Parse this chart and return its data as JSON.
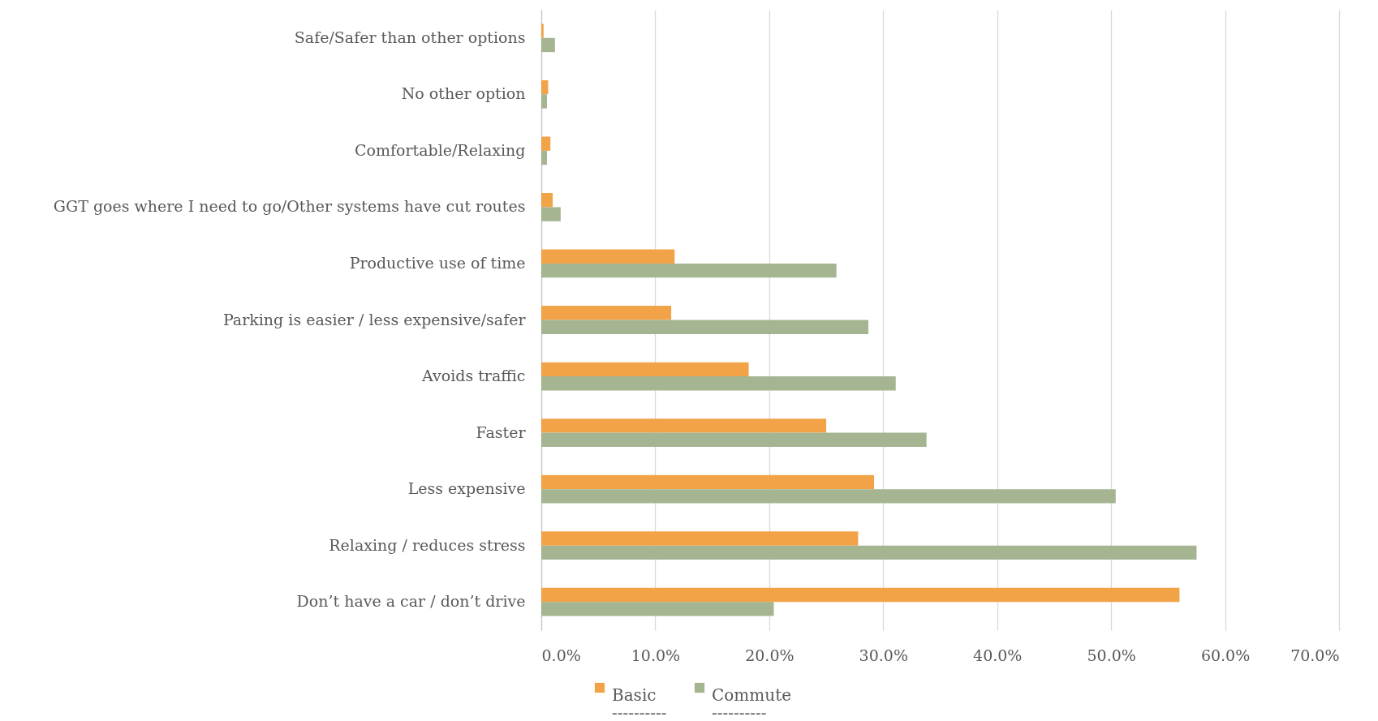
{
  "chart_data": {
    "type": "bar",
    "orientation": "horizontal",
    "categories": [
      "Safe/Safer than other options",
      "No other option",
      "Comfortable/Relaxing",
      "GGT goes where I need to go/Other systems have cut routes",
      "Productive use of time",
      "Parking is easier / less expensive/safer",
      "Avoids traffic",
      "Faster",
      "Less expensive",
      "Relaxing / reduces stress",
      "Don’t have a car / don’t drive"
    ],
    "series": [
      {
        "name": "Basic\n----------",
        "color": "#f2a348",
        "values": [
          0.2,
          0.6,
          0.8,
          1.0,
          11.7,
          11.4,
          18.2,
          25.0,
          29.2,
          27.8,
          56.0
        ]
      },
      {
        "name": "Commute\n----------",
        "color": "#a5b592",
        "values": [
          1.2,
          0.5,
          0.5,
          1.7,
          25.9,
          28.7,
          31.1,
          33.8,
          50.4,
          57.5,
          20.4
        ]
      }
    ],
    "xlim": [
      0,
      70
    ],
    "xticks": [
      {
        "value": 0,
        "label": "0.0%"
      },
      {
        "value": 10,
        "label": "10.0%"
      },
      {
        "value": 20,
        "label": "20.0%"
      },
      {
        "value": 30,
        "label": "30.0%"
      },
      {
        "value": 40,
        "label": "40.0%"
      },
      {
        "value": 50,
        "label": "50.0%"
      },
      {
        "value": 60,
        "label": "60.0%"
      },
      {
        "value": 70,
        "label": "70.0%"
      }
    ],
    "grid": "x",
    "legend": "bottom"
  }
}
